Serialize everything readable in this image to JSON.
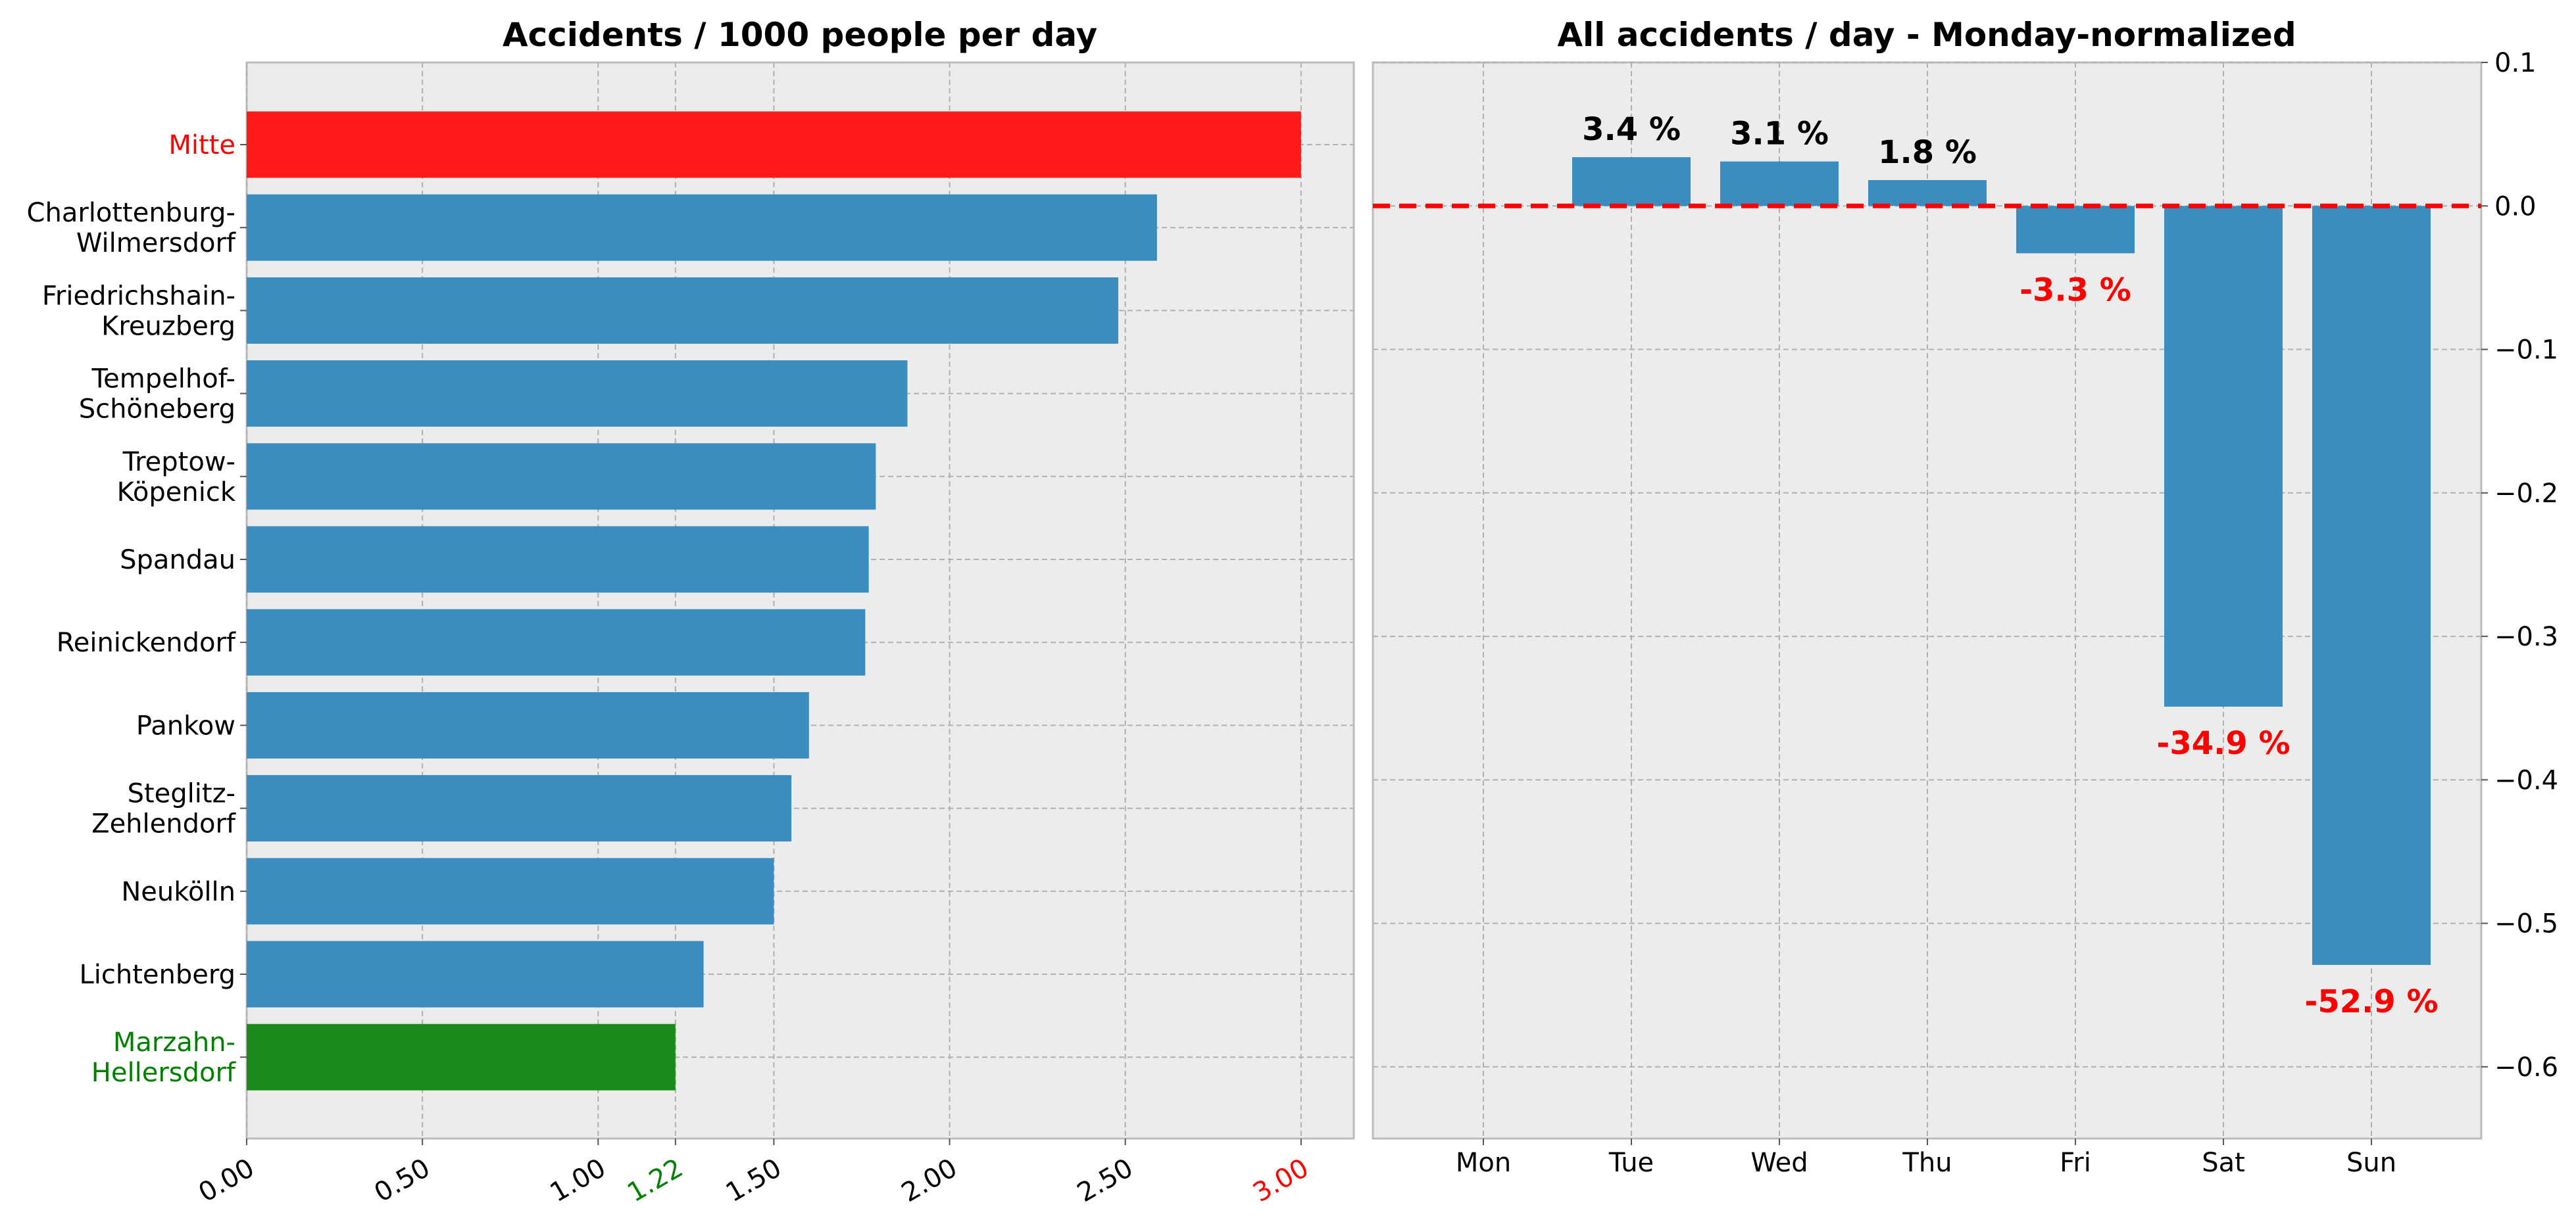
{
  "chart_data": [
    {
      "type": "bar",
      "orientation": "horizontal",
      "title": "Accidents / 1000 people per day",
      "categories": [
        "Mitte",
        "Charlottenburg-\nWilmersdorf",
        "Friedrichshain-\nKreuzberg",
        "Tempelhof-\nSchöneberg",
        "Treptow-\nKöpenick",
        "Spandau",
        "Reinickendorf",
        "Pankow",
        "Steglitz-\nZehlendorf",
        "Neukölln",
        "Lichtenberg",
        "Marzahn-\nHellersdorf"
      ],
      "values": [
        3.0,
        2.59,
        2.48,
        1.88,
        1.79,
        1.77,
        1.76,
        1.6,
        1.55,
        1.5,
        1.3,
        1.22
      ],
      "bar_colors": [
        "#ff1a1a",
        "#3c8dbf",
        "#3c8dbf",
        "#3c8dbf",
        "#3c8dbf",
        "#3c8dbf",
        "#3c8dbf",
        "#3c8dbf",
        "#3c8dbf",
        "#3c8dbf",
        "#3c8dbf",
        "#1a8a1a"
      ],
      "label_colors": [
        "#ff0000",
        "#000000",
        "#000000",
        "#000000",
        "#000000",
        "#000000",
        "#000000",
        "#000000",
        "#000000",
        "#000000",
        "#000000",
        "#008000"
      ],
      "xticks": [
        {
          "value": 0.0,
          "label": "0.00",
          "color": "#000000"
        },
        {
          "value": 0.5,
          "label": "0.50",
          "color": "#000000"
        },
        {
          "value": 1.0,
          "label": "1.00",
          "color": "#000000"
        },
        {
          "value": 1.22,
          "label": "1.22",
          "color": "#008000"
        },
        {
          "value": 1.5,
          "label": "1.50",
          "color": "#000000"
        },
        {
          "value": 2.0,
          "label": "2.00",
          "color": "#000000"
        },
        {
          "value": 2.5,
          "label": "2.50",
          "color": "#000000"
        },
        {
          "value": 3.0,
          "label": "3.00",
          "color": "#ff0000"
        }
      ],
      "xlim": [
        0,
        3.15
      ],
      "grid": true
    },
    {
      "type": "bar",
      "title": "All accidents / day - Monday-normalized",
      "categories": [
        "Mon",
        "Tue",
        "Wed",
        "Thu",
        "Fri",
        "Sat",
        "Sun"
      ],
      "values": [
        0.0,
        0.034,
        0.031,
        0.018,
        -0.033,
        -0.349,
        -0.529
      ],
      "data_labels": [
        "",
        "3.4 %",
        "3.1 %",
        "1.8 %",
        "-3.3 %",
        "-34.9 %",
        "-52.9 %"
      ],
      "label_colors": {
        "positive": "#000000",
        "negative": "#ff0000"
      },
      "bar_color": "#3c8dbf",
      "reference_line": {
        "y": 0.0,
        "color": "#ff0000",
        "style": "dashed"
      },
      "yticks": [
        {
          "value": 0.1,
          "label": "0.1"
        },
        {
          "value": 0.0,
          "label": "0.0"
        },
        {
          "value": -0.1,
          "label": "−0.1"
        },
        {
          "value": -0.2,
          "label": "−0.2"
        },
        {
          "value": -0.3,
          "label": "−0.3"
        },
        {
          "value": -0.4,
          "label": "−0.4"
        },
        {
          "value": -0.5,
          "label": "−0.5"
        },
        {
          "value": -0.6,
          "label": "−0.6"
        }
      ],
      "ylim": [
        -0.65,
        0.1
      ],
      "yaxis_position": "right",
      "grid": true
    }
  ]
}
